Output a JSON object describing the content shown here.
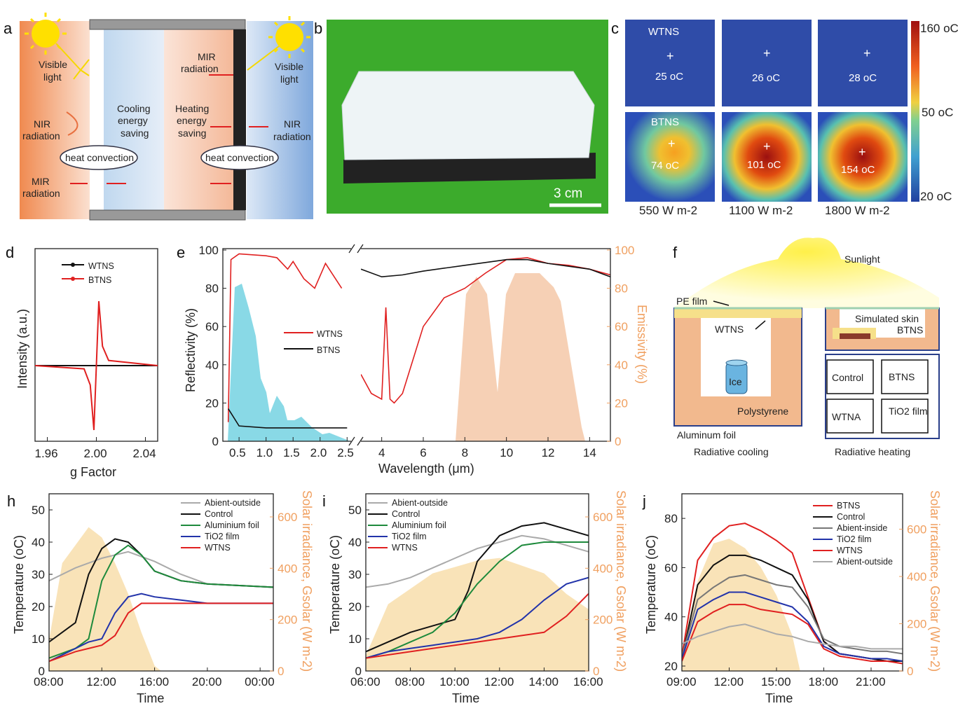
{
  "panel_letters": {
    "a": "a",
    "b": "b",
    "c": "c",
    "d": "d",
    "e": "e",
    "f": "f",
    "h": "h",
    "i": "i",
    "j": "j"
  },
  "colors": {
    "orange_axis": "#f0a060",
    "red": "#e02020",
    "black": "#111111",
    "green": "#1e8a3c",
    "blue": "#2233aa",
    "gray": "#aaaaaa",
    "darkgray": "#777777",
    "solar_fill": "#f8e0b0",
    "cyan_fill": "#6ccfe0",
    "peach_fill": "#f5c8a8"
  },
  "panel_a": {
    "visible_light_left": [
      "Visible",
      "light"
    ],
    "visible_light_right": [
      "Visible",
      "light"
    ],
    "nir_left": [
      "NIR",
      "radiation"
    ],
    "nir_right": [
      "NIR",
      "radiation"
    ],
    "mir_left": [
      "MIR",
      "radiation"
    ],
    "mir_right": [
      "MIR",
      "radiation"
    ],
    "cooling": [
      "Cooling",
      "energy",
      "saving"
    ],
    "heating": [
      "Heating",
      "energy",
      "saving"
    ],
    "heat_convection": "heat convection"
  },
  "panel_b": {
    "scale_label": "3 cm"
  },
  "panel_c": {
    "row_labels": [
      "WTNS",
      "BTNS"
    ],
    "temps_top": [
      "25 oC",
      "26 oC",
      "28 oC"
    ],
    "temps_bottom": [
      "74 oC",
      "101 oC",
      "154 oC"
    ],
    "irradiances": [
      "550 W m-2",
      "1100 W m-2",
      "1800 W m-2"
    ],
    "colorbar_labels": [
      "160 oC",
      "50 oC",
      "20 oC"
    ]
  },
  "panel_f": {
    "sunlight": "Sunlight",
    "pe_film": "PE film",
    "wtns": "WTNS",
    "ice": "Ice",
    "polystyrene": "Polystyrene",
    "aluminum_foil": "Aluminum foil",
    "radiative_cooling": "Radiative cooling",
    "simulated_skin": "Simulated skin",
    "btns": "BTNS",
    "grid": [
      "Control",
      "BTNS",
      "WTNA",
      "TiO2 film"
    ],
    "radiative_heating": "Radiative heating"
  },
  "chart_data": [
    {
      "id": "d",
      "type": "line",
      "xlabel": "g Factor",
      "ylabel": "Intensity (a.u.)",
      "xlim": [
        1.95,
        2.05
      ],
      "x_ticks": [
        "1.96",
        "2.00",
        "2.04"
      ],
      "legend": [
        "WTNS",
        "BTNS"
      ],
      "series": [
        {
          "name": "WTNS",
          "x": [
            1.95,
            2.0,
            2.05
          ],
          "values": [
            0,
            0,
            0
          ]
        },
        {
          "name": "BTNS",
          "x": [
            1.95,
            1.99,
            1.995,
            1.998,
            2.0,
            2.002,
            2.005,
            2.01,
            2.05
          ],
          "values": [
            0,
            -0.05,
            -0.3,
            -1.0,
            0,
            1.0,
            0.3,
            0.08,
            0
          ]
        }
      ]
    },
    {
      "id": "e",
      "type": "line",
      "xlabel": "Wavelength (μm)",
      "ylabel": "Reflectivity (%)",
      "y2label": "Emissivity (%)",
      "ylim": [
        0,
        100
      ],
      "y_ticks": [
        "0",
        "20",
        "40",
        "60",
        "80",
        "100"
      ],
      "x_ticks": [
        "0.5",
        "1.0",
        "1.5",
        "2.0",
        "2.5",
        "4",
        "6",
        "8",
        "10",
        "12",
        "14"
      ],
      "legend": [
        "WTNS",
        "BTNS"
      ],
      "series": [
        {
          "name": "WTNS",
          "x": [
            0.3,
            0.35,
            0.5,
            1.0,
            1.2,
            1.4,
            1.5,
            1.7,
            1.9,
            2.1,
            2.4
          ],
          "values": [
            10,
            95,
            98,
            97,
            96,
            90,
            94,
            85,
            80,
            93,
            80
          ]
        },
        {
          "name": "BTNS",
          "x": [
            0.3,
            0.5,
            1.0,
            1.5,
            2.0,
            2.5
          ],
          "values": [
            17,
            8,
            7,
            7,
            7,
            7
          ]
        },
        {
          "name": "WTNS",
          "x": [
            3,
            3.5,
            4,
            4.2,
            4.4,
            4.6,
            5,
            6,
            7,
            8,
            9,
            10,
            11,
            12,
            13,
            14,
            15
          ],
          "values": [
            35,
            25,
            22,
            70,
            22,
            20,
            25,
            60,
            75,
            80,
            88,
            95,
            96,
            93,
            92,
            90,
            87
          ]
        },
        {
          "name": "BTNS",
          "x": [
            3,
            4,
            5,
            6,
            8,
            10,
            11,
            12,
            14,
            15
          ],
          "values": [
            90,
            86,
            87,
            89,
            92,
            95,
            95,
            93,
            90,
            86
          ]
        }
      ]
    },
    {
      "id": "h",
      "type": "line",
      "xlabel": "Time",
      "ylabel": "Temperature (oC)",
      "y2label": "Solar irradiance, Gsolar (W m-2)",
      "ylim": [
        0,
        55
      ],
      "y_ticks": [
        "0",
        "10",
        "20",
        "30",
        "40",
        "50"
      ],
      "y2_ticks": [
        "0",
        "200",
        "400",
        "600"
      ],
      "x_ticks": [
        "08:00",
        "12:00",
        "16:00",
        "20:00",
        "00:00"
      ],
      "legend": [
        "Abient-outside",
        "Control",
        "Aluminium foil",
        "TiO2 film",
        "WTNS"
      ],
      "series": [
        {
          "name": "Abient-outside",
          "x": [
            0,
            2,
            4,
            6,
            8,
            10,
            12,
            17
          ],
          "values": [
            28,
            32,
            35,
            37,
            34,
            30,
            27,
            26
          ]
        },
        {
          "name": "Control",
          "x": [
            0,
            2,
            3,
            4,
            5,
            6,
            7,
            8,
            10,
            12,
            17
          ],
          "values": [
            9,
            15,
            30,
            38,
            41,
            40,
            36,
            31,
            28,
            27,
            26
          ]
        },
        {
          "name": "Aluminium foil",
          "x": [
            0,
            2,
            3,
            4,
            5,
            6,
            7,
            8,
            10,
            12,
            17
          ],
          "values": [
            4,
            7,
            10,
            28,
            36,
            39,
            36,
            31,
            28,
            27,
            26
          ]
        },
        {
          "name": "TiO2 film",
          "x": [
            0,
            2,
            3,
            4,
            5,
            6,
            7,
            8,
            10,
            12,
            17
          ],
          "values": [
            3,
            7,
            9,
            10,
            18,
            23,
            24,
            23,
            22,
            21,
            21
          ]
        },
        {
          "name": "WTNS",
          "x": [
            0,
            2,
            4,
            5,
            6,
            7,
            8,
            10,
            12,
            17
          ],
          "values": [
            3,
            6,
            8,
            11,
            18,
            21,
            21,
            21,
            21,
            21
          ]
        },
        {
          "name": "Solar",
          "x": [
            0,
            1,
            3,
            4,
            5,
            6,
            7,
            8,
            8.5
          ],
          "values": [
            120,
            420,
            560,
            520,
            420,
            300,
            150,
            20,
            0
          ]
        }
      ]
    },
    {
      "id": "i",
      "type": "line",
      "xlabel": "Time",
      "ylabel": "Temperature (oC)",
      "y2label": "Solar irradiance, Gsolar (W m-2)",
      "ylim": [
        0,
        55
      ],
      "y_ticks": [
        "0",
        "10",
        "20",
        "30",
        "40",
        "50"
      ],
      "y2_ticks": [
        "0",
        "200",
        "400",
        "600"
      ],
      "x_ticks": [
        "06:00",
        "08:00",
        "10:00",
        "12:00",
        "14:00",
        "16:00"
      ],
      "legend": [
        "Abient-outside",
        "Control",
        "Aluminium foil",
        "TiO2 film",
        "WTNS"
      ],
      "series": [
        {
          "name": "Abient-outside",
          "x": [
            0,
            1,
            2,
            3,
            4,
            5,
            6,
            7,
            8,
            9,
            10
          ],
          "values": [
            26,
            27,
            29,
            32,
            35,
            38,
            40,
            42,
            41,
            39,
            37
          ]
        },
        {
          "name": "Control",
          "x": [
            0,
            1,
            2,
            3,
            4,
            4.6,
            5,
            6,
            7,
            8,
            9,
            10
          ],
          "values": [
            6,
            9,
            12,
            14,
            16,
            25,
            34,
            42,
            45,
            46,
            44,
            42
          ]
        },
        {
          "name": "Aluminium foil",
          "x": [
            0,
            1,
            2,
            3,
            4,
            5,
            6,
            7,
            8,
            9,
            10
          ],
          "values": [
            4,
            6,
            9,
            12,
            18,
            27,
            34,
            39,
            40,
            40,
            40
          ]
        },
        {
          "name": "TiO2 film",
          "x": [
            0,
            1,
            2,
            3,
            4,
            5,
            6,
            7,
            8,
            9,
            10
          ],
          "values": [
            4,
            6,
            7,
            8,
            9,
            10,
            12,
            16,
            22,
            27,
            29
          ]
        },
        {
          "name": "WTNS",
          "x": [
            0,
            1,
            2,
            3,
            4,
            5,
            6,
            7,
            8,
            9,
            10
          ],
          "values": [
            4,
            5,
            6,
            7,
            8,
            9,
            10,
            11,
            12,
            17,
            24
          ]
        },
        {
          "name": "Solar",
          "x": [
            0,
            1,
            3,
            5,
            6,
            7,
            8,
            9,
            10
          ],
          "values": [
            60,
            260,
            380,
            430,
            440,
            410,
            380,
            300,
            240
          ]
        }
      ]
    },
    {
      "id": "j",
      "type": "line",
      "xlabel": "Time",
      "ylabel": "Temperature (oC)",
      "y2label": "Solar irradiance, Gsolar (W m-2)",
      "ylim": [
        18,
        90
      ],
      "y_ticks": [
        "20",
        "40",
        "60",
        "80"
      ],
      "y2_ticks": [
        "0",
        "200",
        "400",
        "600"
      ],
      "x_ticks": [
        "09:00",
        "12:00",
        "15:00",
        "18:00",
        "21:00"
      ],
      "legend": [
        "BTNS",
        "Control",
        "Abient-inside",
        "TiO2 film",
        "WTNS",
        "Abient-outside"
      ],
      "series": [
        {
          "name": "BTNS",
          "x": [
            0,
            1,
            2,
            3,
            4,
            5,
            6,
            7,
            8,
            9,
            10,
            11,
            12,
            13,
            14
          ],
          "values": [
            24,
            63,
            72,
            77,
            78,
            75,
            71,
            66,
            48,
            30,
            25,
            24,
            23,
            22,
            22
          ]
        },
        {
          "name": "Control",
          "x": [
            0,
            1,
            2,
            3,
            4,
            5,
            6,
            7,
            8,
            9,
            10,
            11,
            12,
            13,
            14
          ],
          "values": [
            23,
            53,
            61,
            65,
            65,
            63,
            60,
            57,
            47,
            30,
            25,
            24,
            23,
            22,
            22
          ]
        },
        {
          "name": "Abient-inside",
          "x": [
            0,
            1,
            2,
            3,
            4,
            5,
            6,
            7,
            8,
            9,
            10,
            11,
            12,
            13,
            14
          ],
          "values": [
            24,
            47,
            52,
            56,
            57,
            55,
            53,
            52,
            44,
            31,
            28,
            27,
            26,
            26,
            25
          ]
        },
        {
          "name": "TiO2 film",
          "x": [
            0,
            1,
            2,
            3,
            4,
            5,
            6,
            7,
            8,
            9,
            10,
            11,
            12,
            13,
            14
          ],
          "values": [
            23,
            43,
            47,
            50,
            50,
            48,
            46,
            44,
            38,
            28,
            25,
            24,
            23,
            23,
            22
          ]
        },
        {
          "name": "WTNS",
          "x": [
            0,
            1,
            2,
            3,
            4,
            5,
            6,
            7,
            8,
            9,
            10,
            11,
            12,
            13,
            14
          ],
          "values": [
            22,
            38,
            42,
            45,
            45,
            43,
            42,
            41,
            37,
            27,
            24,
            23,
            22,
            22,
            21
          ]
        },
        {
          "name": "Abient-outside",
          "x": [
            0,
            1,
            2,
            3,
            4,
            5,
            6,
            7,
            8,
            9,
            10,
            11,
            12,
            13,
            14
          ],
          "values": [
            29,
            32,
            34,
            36,
            37,
            35,
            33,
            32,
            30,
            29,
            28,
            28,
            27,
            27,
            27
          ]
        },
        {
          "name": "Solar",
          "x": [
            0,
            1,
            2,
            3,
            4,
            5,
            6,
            7,
            7.5
          ],
          "values": [
            80,
            380,
            540,
            560,
            520,
            440,
            320,
            150,
            0
          ]
        }
      ]
    }
  ]
}
